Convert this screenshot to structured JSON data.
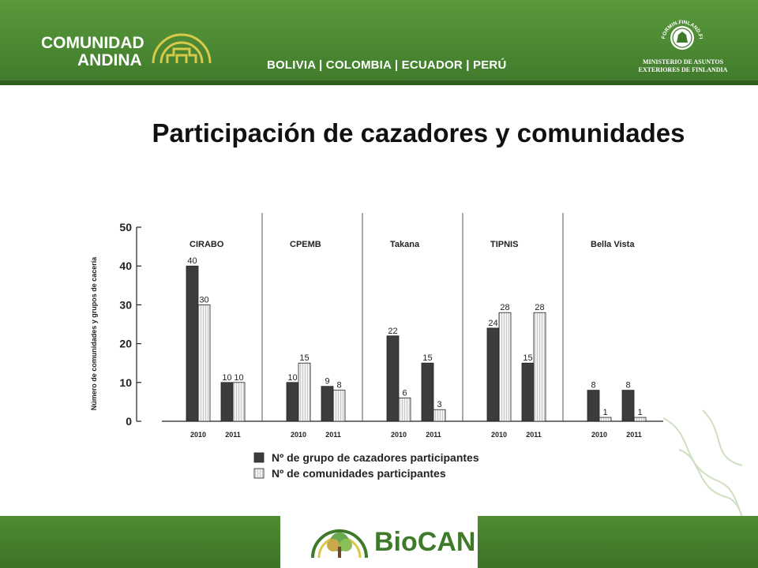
{
  "header": {
    "brand_line1": "COMUNIDAD",
    "brand_line2": "ANDINA",
    "countries": "BOLIVIA | COLOMBIA | ECUADOR | PERÚ",
    "seal_text": "FORMIN.FINLAND.FI",
    "ministry_line1": "MINISTERIO DE ASUNTOS",
    "ministry_line2": "EXTERIORES DE FINLANDIA"
  },
  "title": "Participación de cazadores y comunidades",
  "footer": {
    "logo_text": "BioCAN"
  },
  "colors": {
    "header_green": "#4a8a33",
    "series_dark": "#3c3c3c",
    "series_light": "#f2f2f2",
    "logo_green": "#3f7a2b"
  },
  "chart_data": {
    "type": "bar",
    "ylabel": "Número de comunidades y grupos de cacería",
    "ylim": [
      0,
      50
    ],
    "yticks": [
      0,
      10,
      20,
      30,
      40,
      50
    ],
    "groups": [
      "CIRABO",
      "CPEMB",
      "Takana",
      "TIPNIS",
      "Bella Vista"
    ],
    "years": [
      "2010",
      "2011"
    ],
    "series": [
      {
        "name": "Nº de grupo de cazadores participantes",
        "values": [
          [
            40,
            10
          ],
          [
            10,
            9
          ],
          [
            22,
            15
          ],
          [
            24,
            15
          ],
          [
            8,
            8
          ]
        ]
      },
      {
        "name": "Nº de comunidades participantes",
        "values": [
          [
            30,
            10
          ],
          [
            15,
            8
          ],
          [
            6,
            3
          ],
          [
            28,
            28
          ],
          [
            1,
            1
          ]
        ]
      }
    ],
    "legend_position": "bottom",
    "grid": false
  }
}
